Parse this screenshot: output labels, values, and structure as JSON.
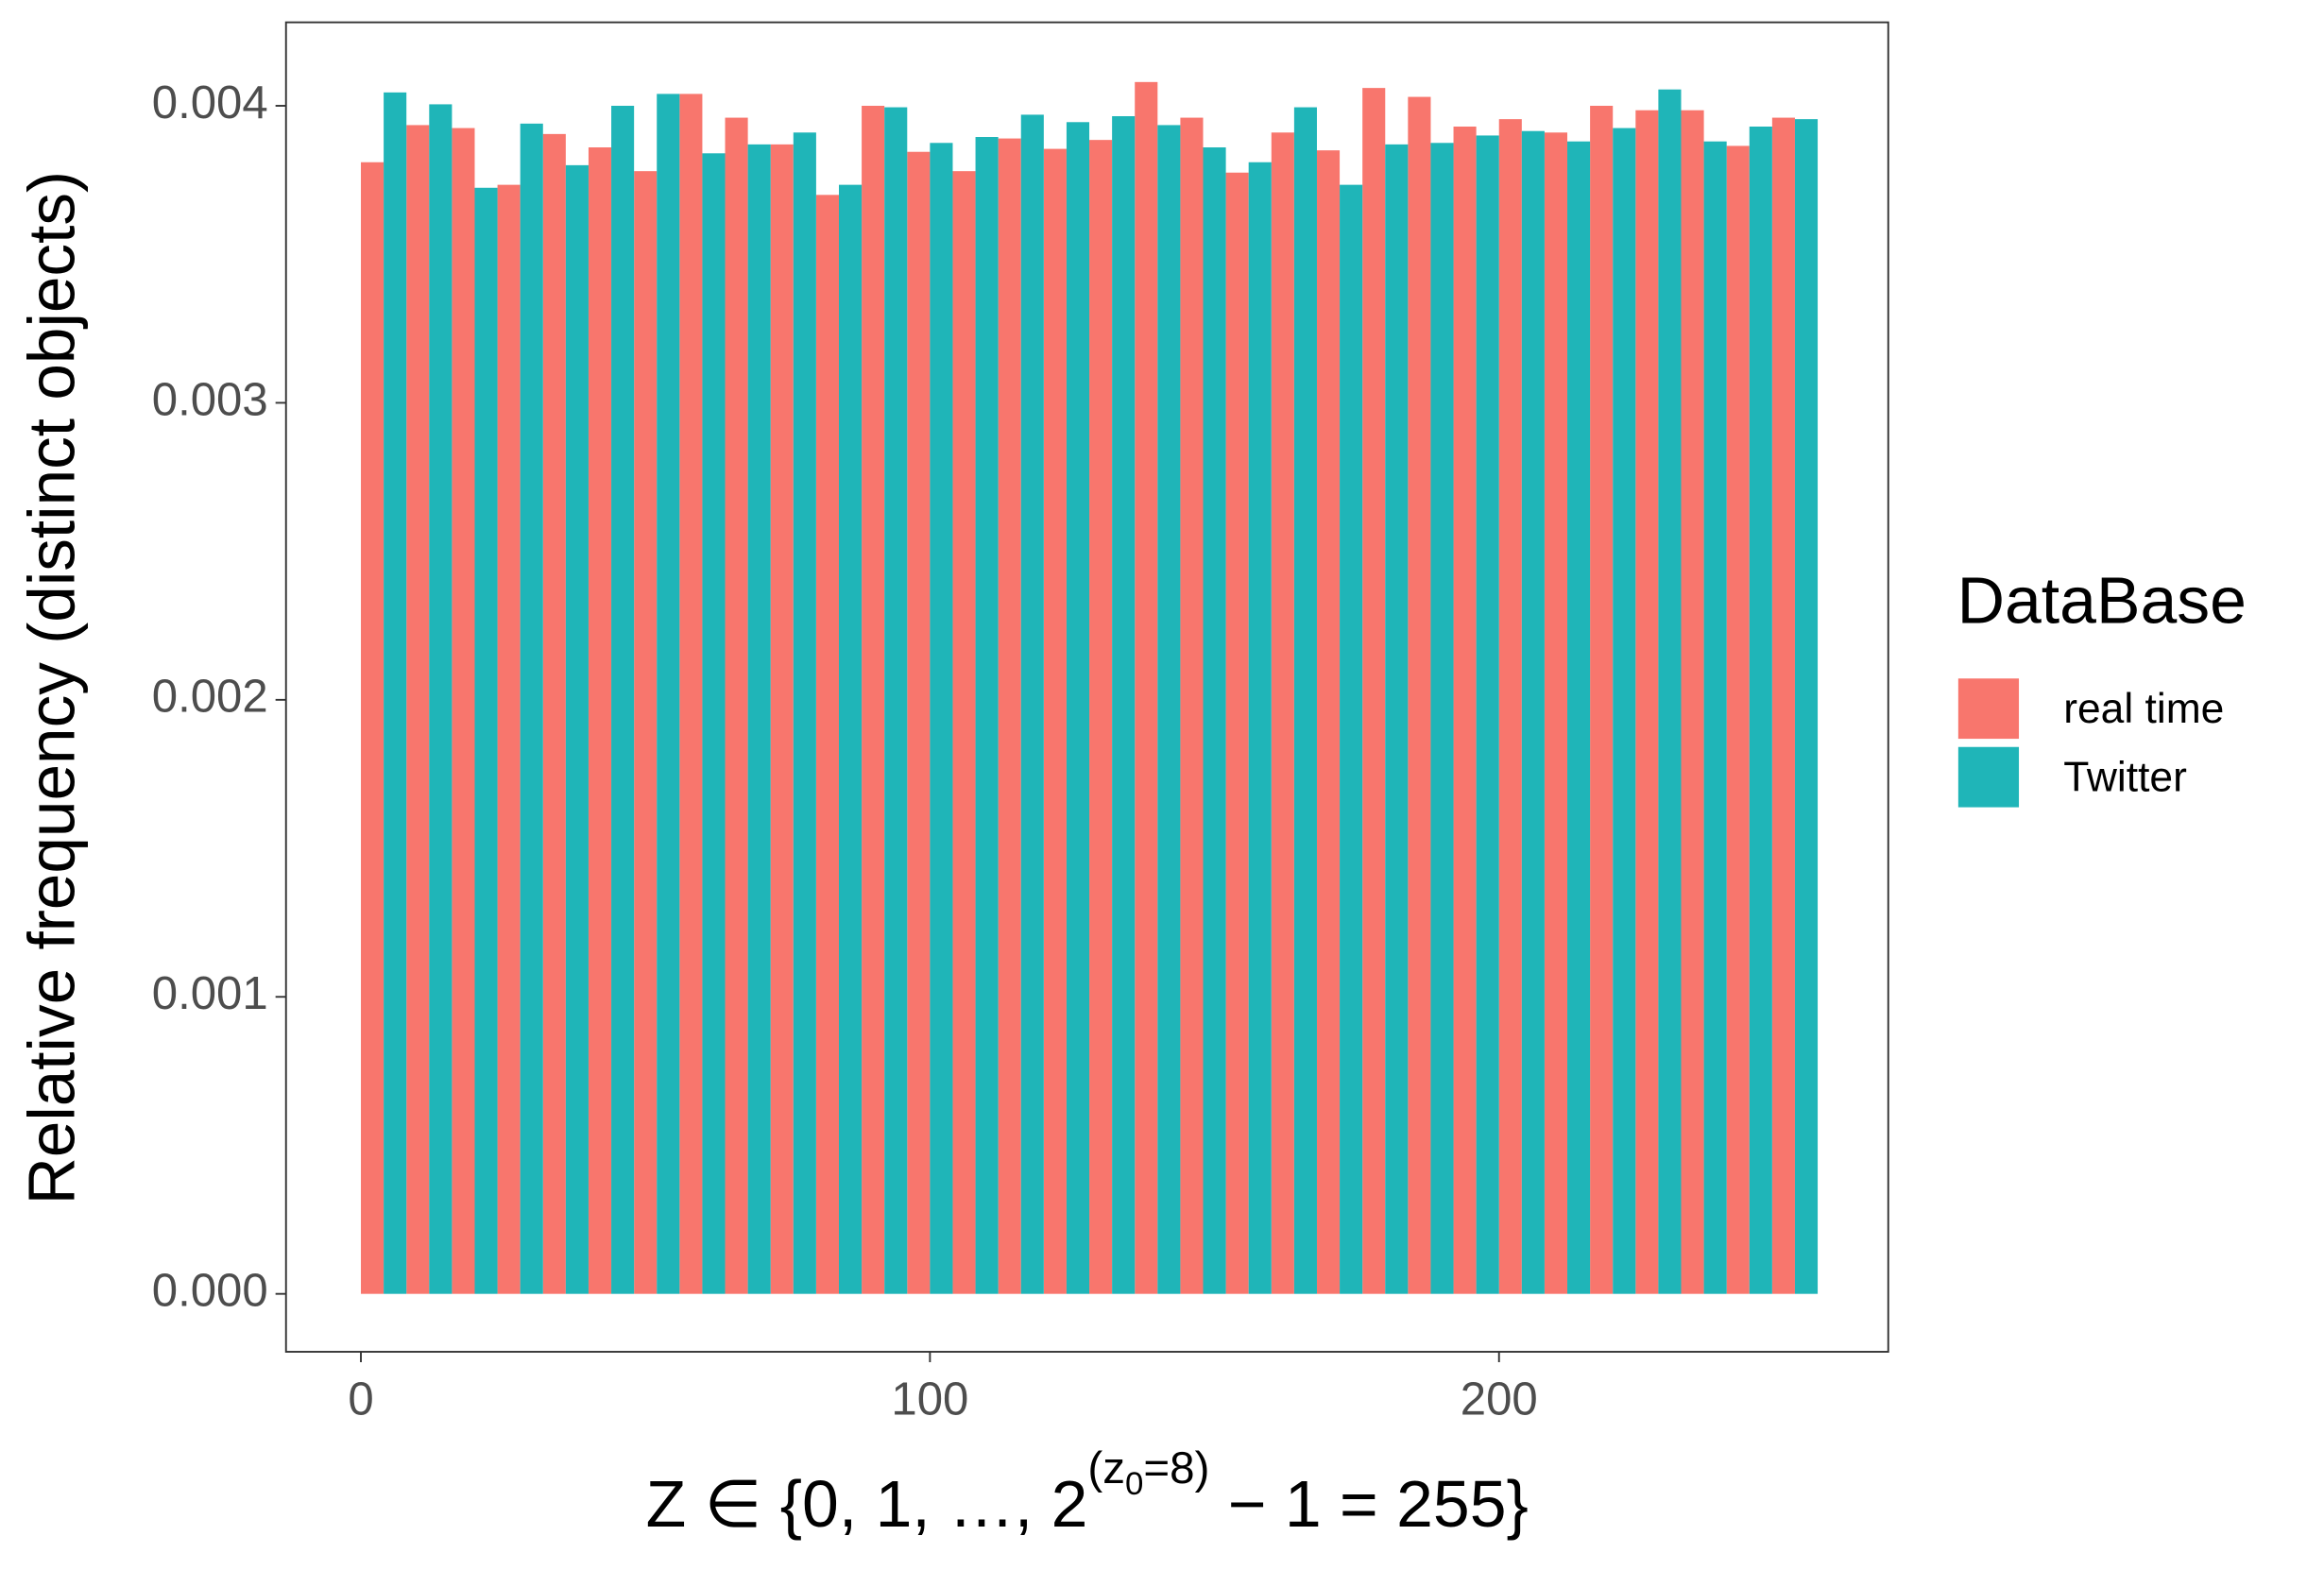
{
  "chart_data": {
    "type": "histogram",
    "y_label": "Relative frequency (distinct objects)",
    "x_label": [
      "Z ∈ {0, 1, …, 2",
      "(z",
      "0",
      "=8)",
      " − 1 = 255}"
    ],
    "legend_title": "DataBase",
    "legend": "right",
    "grid": false,
    "bins": [
      0,
      8,
      16,
      24,
      32,
      40,
      48,
      56,
      64,
      72,
      80,
      88,
      96,
      104,
      112,
      120,
      128,
      136,
      144,
      152,
      160,
      168,
      176,
      184,
      192,
      200,
      208,
      216,
      224,
      232,
      240,
      248,
      256
    ],
    "series": [
      {
        "name": "real time",
        "color": "#f8766d",
        "values": [
          0.00381,
          0.003935,
          0.003925,
          0.003734,
          0.003905,
          0.00386,
          0.00378,
          0.00404,
          0.00396,
          0.00387,
          0.0037,
          0.004,
          0.003845,
          0.00378,
          0.00389,
          0.003855,
          0.003885,
          0.00408,
          0.00396,
          0.003775,
          0.00391,
          0.00385,
          0.00406,
          0.00403,
          0.00393,
          0.003955,
          0.00391,
          0.004,
          0.003985,
          0.003985,
          0.003865,
          0.00396
        ]
      },
      {
        "name": "Twitter",
        "color": "#1fb5b8",
        "values": [
          0.004045,
          0.004005,
          0.003724,
          0.00394,
          0.0038,
          0.004,
          0.00404,
          0.00384,
          0.00387,
          0.00391,
          0.003734,
          0.003995,
          0.003875,
          0.003895,
          0.00397,
          0.003945,
          0.003965,
          0.003935,
          0.00386,
          0.00381,
          0.003995,
          0.003734,
          0.00387,
          0.003875,
          0.0039,
          0.003915,
          0.00388,
          0.003925,
          0.004055,
          0.00388,
          0.00393,
          0.003955
        ]
      }
    ],
    "xlim": [
      -13.16,
      268.4
    ],
    "xticks": [
      0,
      100,
      200
    ],
    "ylim": [
      -0.000195,
      0.004281
    ],
    "yticks": [
      {
        "value": 0,
        "label": "0.000"
      },
      {
        "value": 0.001,
        "label": "0.001"
      },
      {
        "value": 0.002,
        "label": "0.002"
      },
      {
        "value": 0.003,
        "label": "0.003"
      },
      {
        "value": 0.004,
        "label": "0.004"
      }
    ]
  }
}
